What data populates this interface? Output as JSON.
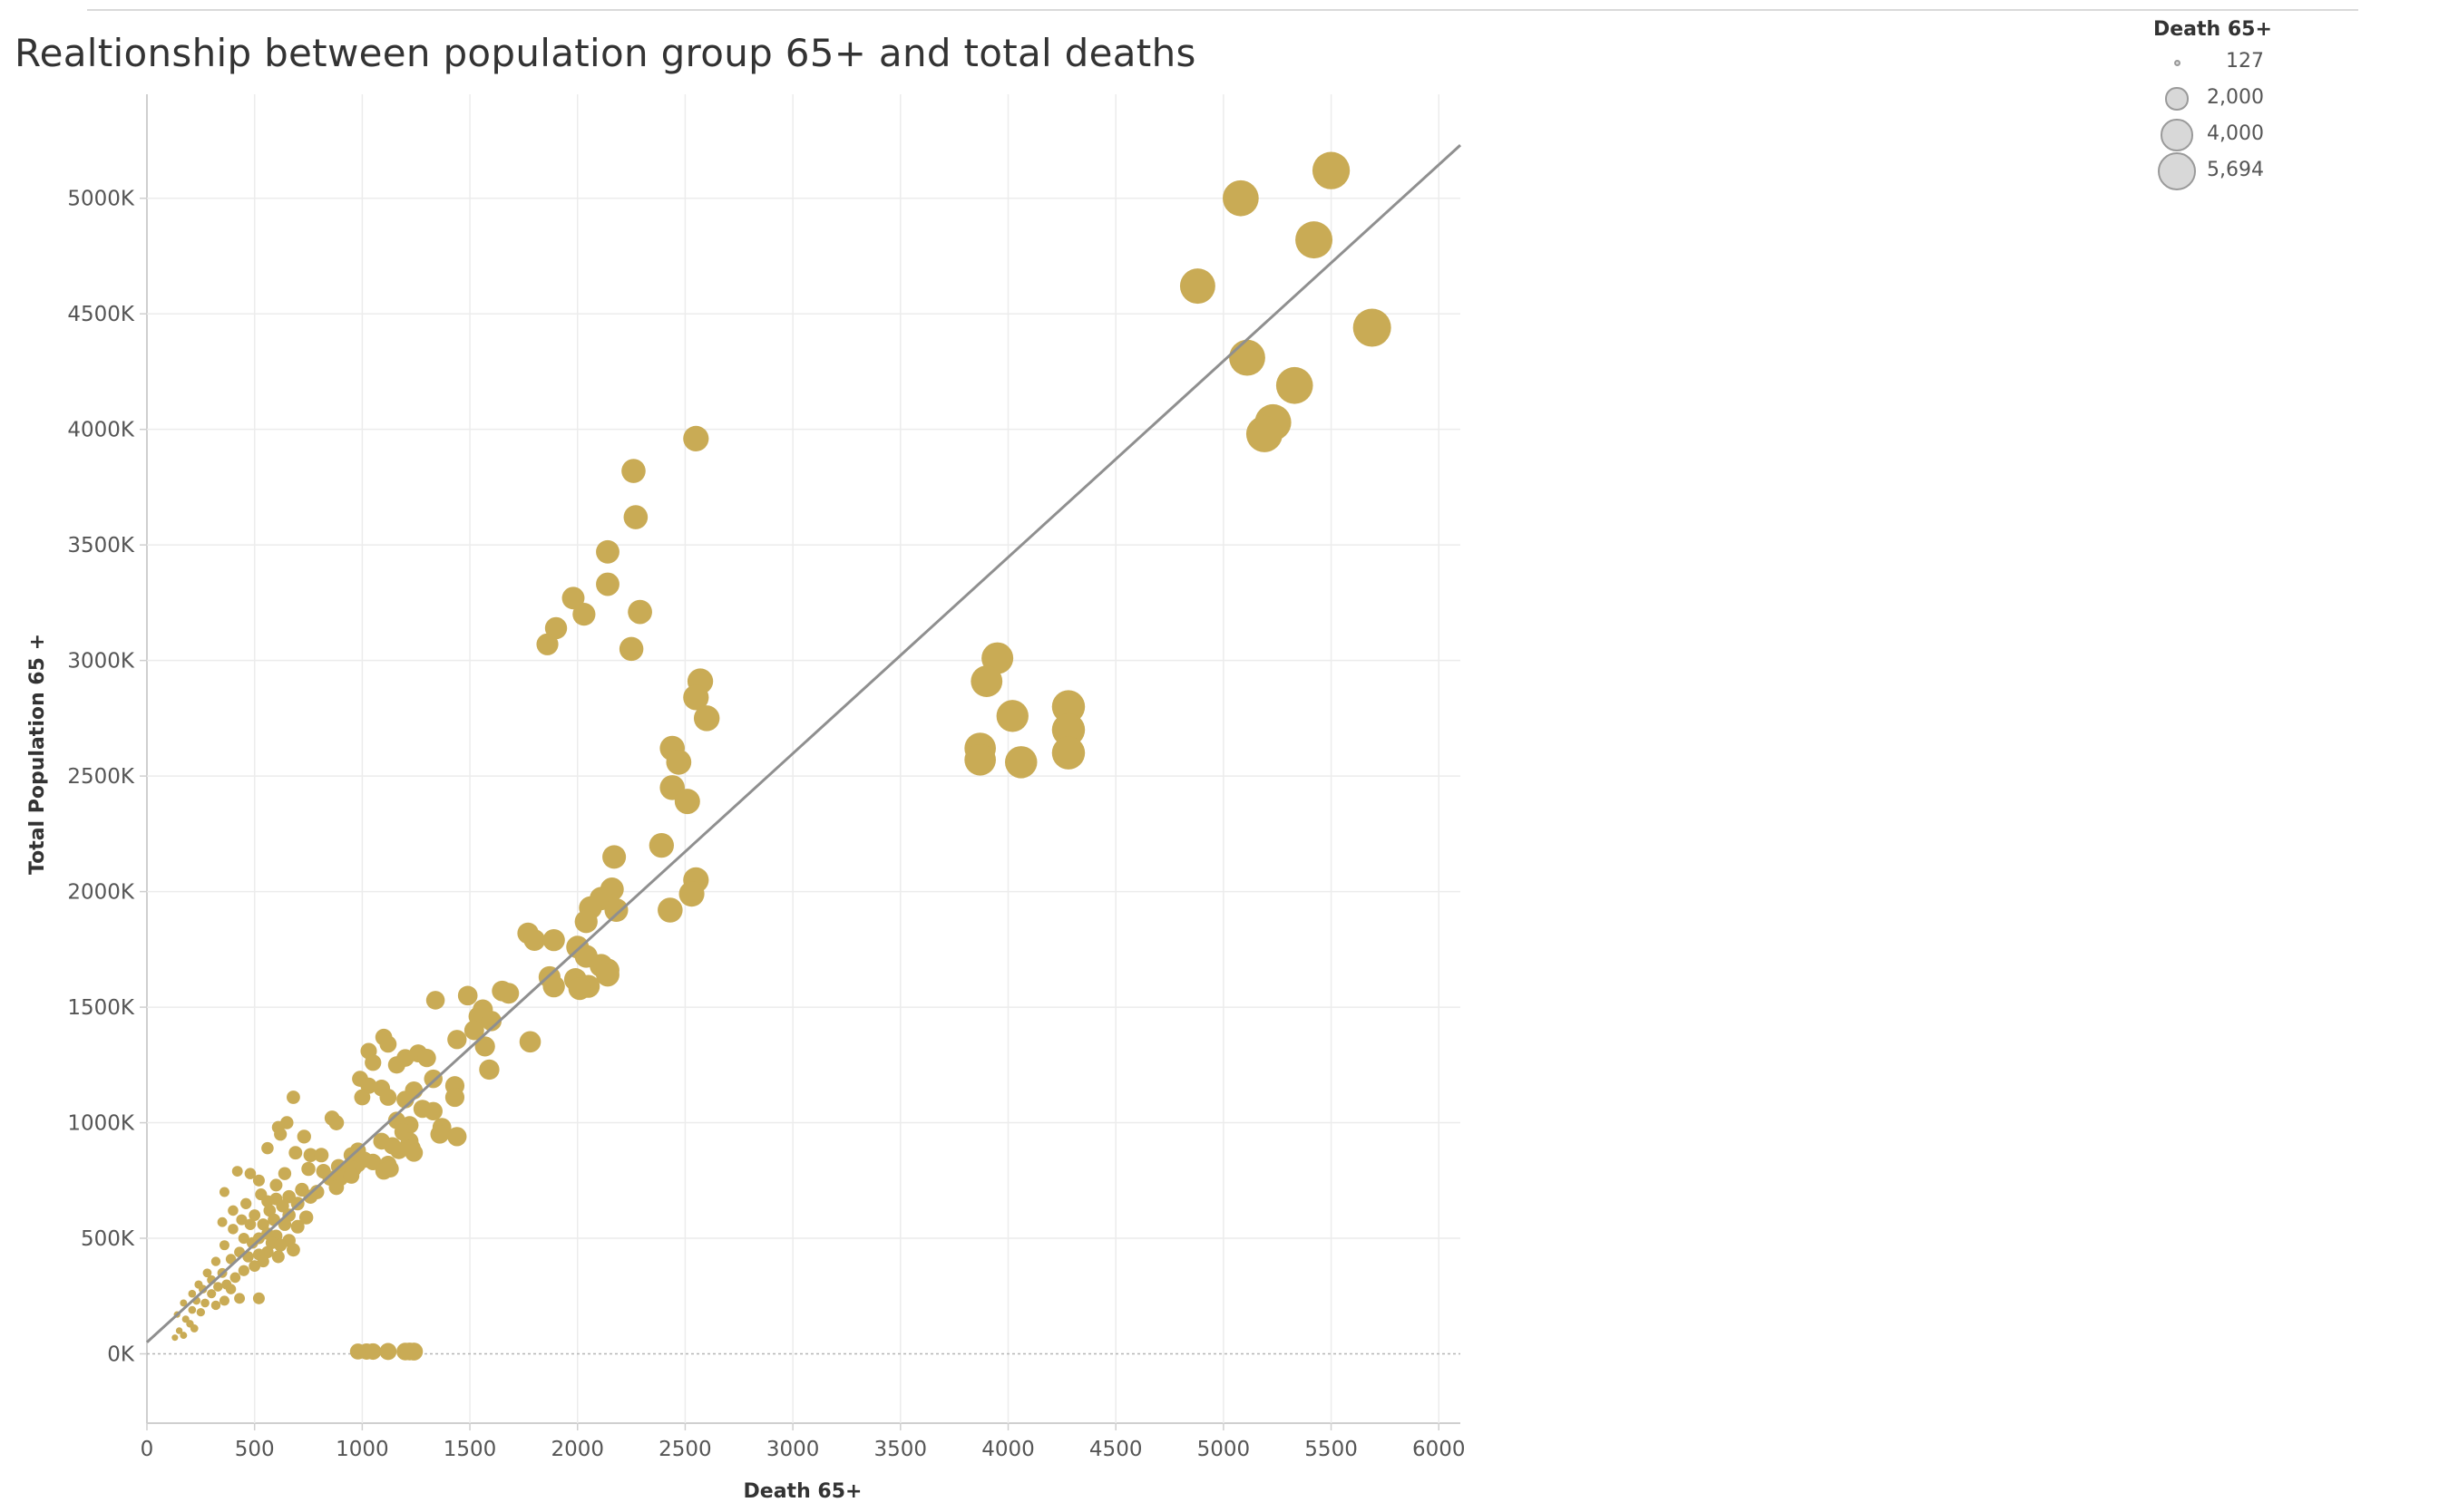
{
  "chart_data": {
    "type": "scatter",
    "title": "Realtionship between population group 65+ and total deaths",
    "xlabel": "Death 65+",
    "ylabel": "Total Population 65 +",
    "xlim": [
      0,
      6100
    ],
    "ylim": [
      -300000,
      5450000
    ],
    "x_ticks": [
      0,
      500,
      1000,
      1500,
      2000,
      2500,
      3000,
      3500,
      4000,
      4500,
      5000,
      5500,
      6000
    ],
    "y_ticks": [
      0,
      500000,
      1000000,
      1500000,
      2000000,
      2500000,
      3000000,
      3500000,
      4000000,
      4500000,
      5000000
    ],
    "y_tick_labels": [
      "0K",
      "500K",
      "1000K",
      "1500K",
      "2000K",
      "2500K",
      "3000K",
      "3500K",
      "4000K",
      "4500K",
      "5000K"
    ],
    "grid": true,
    "mark_color": "#c9ab55",
    "trend_line": {
      "color": "#8f8f8f",
      "points": [
        [
          0,
          50000
        ],
        [
          6100,
          5230000
        ]
      ]
    },
    "size_legend": {
      "title": "Death 65+",
      "position": "top-right",
      "entries": [
        {
          "label": "127",
          "value": 127
        },
        {
          "label": "2,000",
          "value": 2000
        },
        {
          "label": "4,000",
          "value": 4000
        },
        {
          "label": "5,694",
          "value": 5694
        }
      ]
    },
    "points": [
      [
        5500,
        5120000
      ],
      [
        5080,
        5000000
      ],
      [
        5420,
        4820000
      ],
      [
        4880,
        4620000
      ],
      [
        5690,
        4440000
      ],
      [
        5110,
        4310000
      ],
      [
        5330,
        4190000
      ],
      [
        5230,
        4030000
      ],
      [
        5190,
        3980000
      ],
      [
        3950,
        3010000
      ],
      [
        3900,
        2910000
      ],
      [
        4280,
        2800000
      ],
      [
        4020,
        2760000
      ],
      [
        4280,
        2700000
      ],
      [
        3870,
        2620000
      ],
      [
        4280,
        2600000
      ],
      [
        3870,
        2570000
      ],
      [
        4060,
        2560000
      ],
      [
        2550,
        3960000
      ],
      [
        2260,
        3820000
      ],
      [
        2270,
        3620000
      ],
      [
        2140,
        3470000
      ],
      [
        2140,
        3330000
      ],
      [
        1980,
        3270000
      ],
      [
        2030,
        3200000
      ],
      [
        2290,
        3210000
      ],
      [
        1900,
        3140000
      ],
      [
        1860,
        3070000
      ],
      [
        2250,
        3050000
      ],
      [
        2570,
        2910000
      ],
      [
        2550,
        2840000
      ],
      [
        2600,
        2750000
      ],
      [
        2440,
        2620000
      ],
      [
        2470,
        2560000
      ],
      [
        2440,
        2450000
      ],
      [
        2510,
        2390000
      ],
      [
        2390,
        2200000
      ],
      [
        2170,
        2150000
      ],
      [
        2550,
        2050000
      ],
      [
        2160,
        2010000
      ],
      [
        2530,
        1990000
      ],
      [
        2110,
        1970000
      ],
      [
        2060,
        1930000
      ],
      [
        2430,
        1920000
      ],
      [
        2180,
        1920000
      ],
      [
        2040,
        1870000
      ],
      [
        1770,
        1820000
      ],
      [
        1800,
        1790000
      ],
      [
        1890,
        1790000
      ],
      [
        2000,
        1760000
      ],
      [
        2040,
        1720000
      ],
      [
        2110,
        1680000
      ],
      [
        2140,
        1660000
      ],
      [
        2140,
        1640000
      ],
      [
        1870,
        1630000
      ],
      [
        1990,
        1620000
      ],
      [
        1890,
        1590000
      ],
      [
        2050,
        1590000
      ],
      [
        2010,
        1580000
      ],
      [
        1650,
        1570000
      ],
      [
        1680,
        1560000
      ],
      [
        1490,
        1550000
      ],
      [
        1340,
        1530000
      ],
      [
        1560,
        1490000
      ],
      [
        1540,
        1460000
      ],
      [
        1600,
        1440000
      ],
      [
        1520,
        1400000
      ],
      [
        1440,
        1360000
      ],
      [
        1780,
        1350000
      ],
      [
        1570,
        1330000
      ],
      [
        1100,
        1370000
      ],
      [
        1120,
        1340000
      ],
      [
        1260,
        1300000
      ],
      [
        1030,
        1310000
      ],
      [
        1200,
        1280000
      ],
      [
        1300,
        1280000
      ],
      [
        1050,
        1260000
      ],
      [
        1160,
        1250000
      ],
      [
        1590,
        1230000
      ],
      [
        1330,
        1190000
      ],
      [
        1430,
        1160000
      ],
      [
        990,
        1190000
      ],
      [
        1030,
        1160000
      ],
      [
        1090,
        1150000
      ],
      [
        1240,
        1140000
      ],
      [
        1000,
        1110000
      ],
      [
        1120,
        1110000
      ],
      [
        1200,
        1100000
      ],
      [
        1430,
        1110000
      ],
      [
        680,
        1110000
      ],
      [
        1280,
        1060000
      ],
      [
        1330,
        1050000
      ],
      [
        860,
        1020000
      ],
      [
        1160,
        1010000
      ],
      [
        650,
        1000000
      ],
      [
        880,
        1000000
      ],
      [
        1220,
        990000
      ],
      [
        1370,
        980000
      ],
      [
        610,
        980000
      ],
      [
        1190,
        960000
      ],
      [
        1360,
        950000
      ],
      [
        1440,
        940000
      ],
      [
        620,
        950000
      ],
      [
        1220,
        920000
      ],
      [
        730,
        940000
      ],
      [
        1090,
        920000
      ],
      [
        1140,
        900000
      ],
      [
        1230,
        890000
      ],
      [
        980,
        880000
      ],
      [
        1170,
        880000
      ],
      [
        1240,
        870000
      ],
      [
        560,
        890000
      ],
      [
        690,
        870000
      ],
      [
        760,
        860000
      ],
      [
        810,
        860000
      ],
      [
        950,
        860000
      ],
      [
        1010,
        840000
      ],
      [
        1050,
        830000
      ],
      [
        980,
        820000
      ],
      [
        1120,
        820000
      ],
      [
        890,
        810000
      ],
      [
        920,
        800000
      ],
      [
        960,
        800000
      ],
      [
        1100,
        790000
      ],
      [
        1130,
        800000
      ],
      [
        750,
        800000
      ],
      [
        820,
        790000
      ],
      [
        420,
        790000
      ],
      [
        480,
        780000
      ],
      [
        640,
        780000
      ],
      [
        850,
        760000
      ],
      [
        900,
        760000
      ],
      [
        950,
        770000
      ],
      [
        520,
        750000
      ],
      [
        600,
        730000
      ],
      [
        880,
        720000
      ],
      [
        720,
        710000
      ],
      [
        790,
        700000
      ],
      [
        530,
        690000
      ],
      [
        360,
        700000
      ],
      [
        760,
        680000
      ],
      [
        660,
        680000
      ],
      [
        600,
        670000
      ],
      [
        560,
        660000
      ],
      [
        460,
        650000
      ],
      [
        700,
        650000
      ],
      [
        630,
        640000
      ],
      [
        570,
        620000
      ],
      [
        400,
        620000
      ],
      [
        500,
        600000
      ],
      [
        660,
        600000
      ],
      [
        740,
        590000
      ],
      [
        440,
        580000
      ],
      [
        590,
        580000
      ],
      [
        350,
        570000
      ],
      [
        480,
        560000
      ],
      [
        540,
        560000
      ],
      [
        640,
        560000
      ],
      [
        700,
        550000
      ],
      [
        400,
        540000
      ],
      [
        560,
        520000
      ],
      [
        600,
        510000
      ],
      [
        450,
        500000
      ],
      [
        520,
        500000
      ],
      [
        660,
        490000
      ],
      [
        580,
        480000
      ],
      [
        490,
        480000
      ],
      [
        620,
        470000
      ],
      [
        360,
        470000
      ],
      [
        680,
        450000
      ],
      [
        560,
        440000
      ],
      [
        520,
        430000
      ],
      [
        430,
        440000
      ],
      [
        610,
        420000
      ],
      [
        470,
        420000
      ],
      [
        390,
        410000
      ],
      [
        540,
        400000
      ],
      [
        320,
        400000
      ],
      [
        500,
        380000
      ],
      [
        450,
        360000
      ],
      [
        350,
        350000
      ],
      [
        280,
        350000
      ],
      [
        410,
        330000
      ],
      [
        300,
        320000
      ],
      [
        370,
        300000
      ],
      [
        240,
        300000
      ],
      [
        330,
        290000
      ],
      [
        260,
        280000
      ],
      [
        390,
        280000
      ],
      [
        300,
        260000
      ],
      [
        210,
        260000
      ],
      [
        430,
        240000
      ],
      [
        360,
        230000
      ],
      [
        230,
        230000
      ],
      [
        520,
        240000
      ],
      [
        170,
        220000
      ],
      [
        270,
        220000
      ],
      [
        320,
        210000
      ],
      [
        210,
        190000
      ],
      [
        250,
        180000
      ],
      [
        140,
        170000
      ],
      [
        180,
        150000
      ],
      [
        200,
        130000
      ],
      [
        220,
        110000
      ],
      [
        150,
        100000
      ],
      [
        170,
        80000
      ],
      [
        130,
        70000
      ],
      [
        980,
        10000
      ],
      [
        1020,
        10000
      ],
      [
        1050,
        10000
      ],
      [
        1120,
        10000
      ],
      [
        1200,
        10000
      ],
      [
        1220,
        10000
      ],
      [
        1240,
        10000
      ]
    ]
  }
}
